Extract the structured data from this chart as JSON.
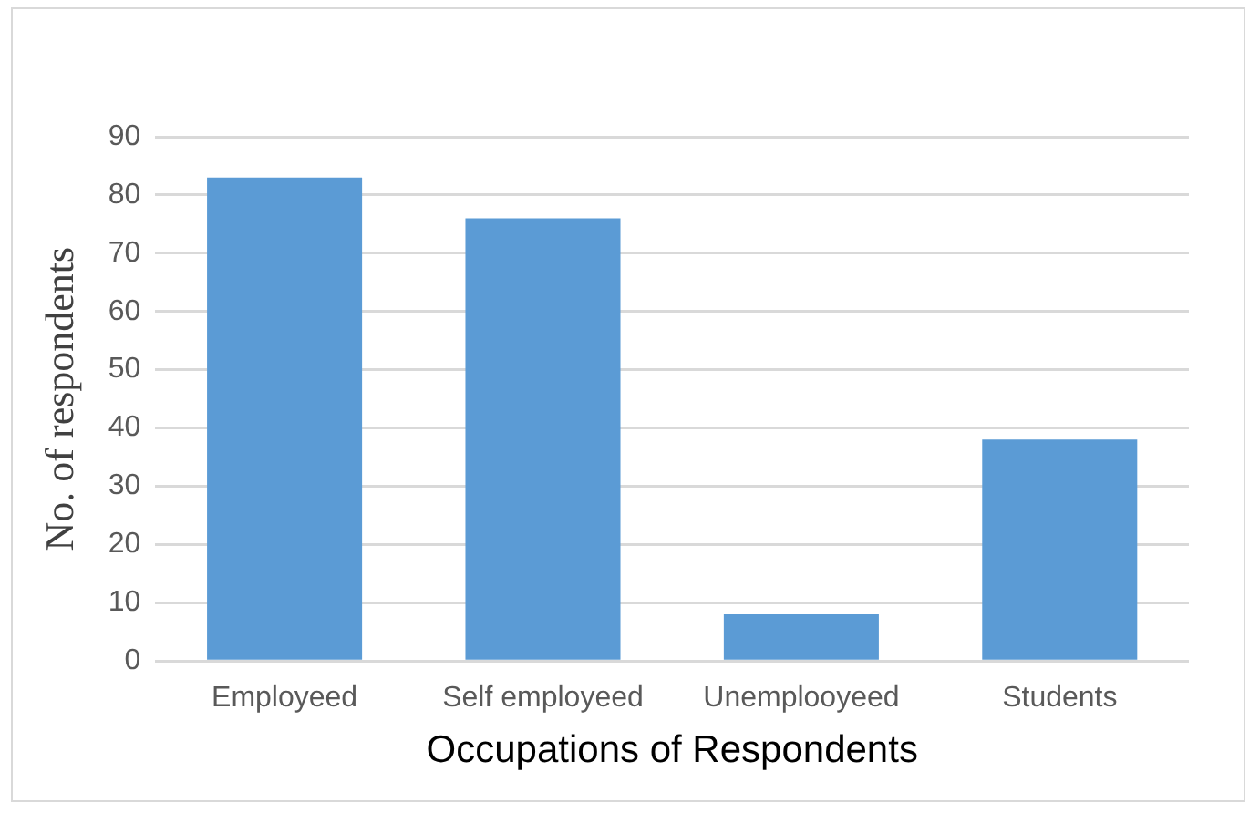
{
  "chart_data": {
    "type": "bar",
    "xlabel": "Occupations of Respondents",
    "ylabel": "No. of respondents",
    "categories": [
      "Employeed",
      "Self employeed",
      "Unemplooyeed",
      "Students"
    ],
    "values": [
      83,
      76,
      8,
      38
    ],
    "color": "#5b9bd5",
    "ylim": [
      0,
      90
    ],
    "yticks": [
      0,
      10,
      20,
      30,
      40,
      50,
      60,
      70,
      80,
      90
    ],
    "grid": "y"
  }
}
